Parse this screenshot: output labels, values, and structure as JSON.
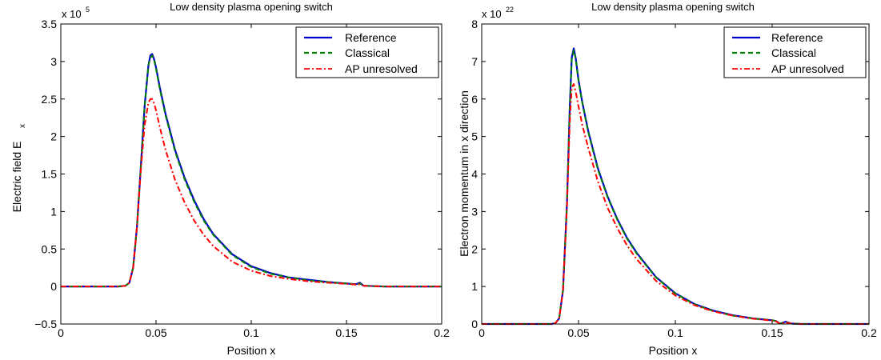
{
  "chart_data": [
    {
      "type": "line",
      "title": "Low density plasma opening switch",
      "xlabel": "Position x",
      "ylabel_main": "Electric field E",
      "ylabel_sub": "x",
      "y_multiplier_base": "x 10",
      "y_multiplier_exp": "5",
      "xlim": [
        0,
        0.2
      ],
      "ylim": [
        -0.5,
        3.5
      ],
      "xticks": [
        0,
        0.05,
        0.1,
        0.15,
        0.2
      ],
      "xtick_labels": [
        "0",
        "0.05",
        "0.1",
        "0.15",
        "0.2"
      ],
      "yticks": [
        -0.5,
        0,
        0.5,
        1,
        1.5,
        2,
        2.5,
        3,
        3.5
      ],
      "ytick_labels": [
        "−0.5",
        "0",
        "0.5",
        "1",
        "1.5",
        "2",
        "2.5",
        "3",
        "3.5"
      ],
      "grid": false,
      "legend_position": "top-right",
      "series": [
        {
          "name": "Reference",
          "color": "#0000cc",
          "dash": "solid",
          "x": [
            0,
            0.03,
            0.034,
            0.036,
            0.038,
            0.04,
            0.042,
            0.044,
            0.046,
            0.047,
            0.048,
            0.049,
            0.05,
            0.052,
            0.055,
            0.06,
            0.065,
            0.07,
            0.075,
            0.08,
            0.09,
            0.1,
            0.11,
            0.12,
            0.13,
            0.14,
            0.15,
            0.155,
            0.157,
            0.159,
            0.165,
            0.17,
            0.2
          ],
          "y": [
            0,
            0,
            0.01,
            0.05,
            0.25,
            0.8,
            1.6,
            2.4,
            2.95,
            3.08,
            3.1,
            3.03,
            2.92,
            2.65,
            2.3,
            1.82,
            1.45,
            1.15,
            0.9,
            0.7,
            0.43,
            0.27,
            0.18,
            0.12,
            0.09,
            0.06,
            0.04,
            0.03,
            0.05,
            0.01,
            0.005,
            0,
            0
          ]
        },
        {
          "name": "Classical",
          "color": "#008000",
          "dash": "6,4",
          "x": [
            0,
            0.03,
            0.034,
            0.036,
            0.038,
            0.04,
            0.042,
            0.044,
            0.046,
            0.047,
            0.048,
            0.049,
            0.05,
            0.052,
            0.055,
            0.06,
            0.065,
            0.07,
            0.075,
            0.08,
            0.09,
            0.1,
            0.11,
            0.12,
            0.13,
            0.14,
            0.15,
            0.155,
            0.157,
            0.159,
            0.165,
            0.17,
            0.2
          ],
          "y": [
            0,
            0,
            0.01,
            0.05,
            0.25,
            0.8,
            1.6,
            2.4,
            2.95,
            3.05,
            3.08,
            3.02,
            2.9,
            2.63,
            2.28,
            1.8,
            1.43,
            1.13,
            0.88,
            0.69,
            0.42,
            0.26,
            0.17,
            0.12,
            0.08,
            0.06,
            0.04,
            0.03,
            0.04,
            0.01,
            0.005,
            0,
            0
          ]
        },
        {
          "name": "AP unresolved",
          "color": "#ff0000",
          "dash": "7,3,2,3",
          "x": [
            0,
            0.03,
            0.034,
            0.036,
            0.038,
            0.04,
            0.042,
            0.044,
            0.046,
            0.047,
            0.048,
            0.049,
            0.05,
            0.052,
            0.055,
            0.06,
            0.065,
            0.07,
            0.075,
            0.08,
            0.09,
            0.1,
            0.11,
            0.12,
            0.13,
            0.14,
            0.15,
            0.155,
            0.157,
            0.159,
            0.165,
            0.17,
            0.2
          ],
          "y": [
            0,
            0,
            0.01,
            0.05,
            0.25,
            0.8,
            1.55,
            2.15,
            2.45,
            2.5,
            2.5,
            2.44,
            2.35,
            2.12,
            1.82,
            1.42,
            1.12,
            0.88,
            0.69,
            0.54,
            0.33,
            0.21,
            0.14,
            0.1,
            0.07,
            0.05,
            0.035,
            0.025,
            0.03,
            0.01,
            0.005,
            0,
            0
          ]
        }
      ]
    },
    {
      "type": "line",
      "title": "Low density plasma opening switch",
      "xlabel": "Position x",
      "ylabel_main": "Electron momentum in x direction",
      "ylabel_sub": "",
      "y_multiplier_base": "x 10",
      "y_multiplier_exp": "22",
      "xlim": [
        0,
        0.2
      ],
      "ylim": [
        0,
        8
      ],
      "xticks": [
        0,
        0.05,
        0.1,
        0.15,
        0.2
      ],
      "xtick_labels": [
        "0",
        "0.05",
        "0.1",
        "0.15",
        "0.2"
      ],
      "yticks": [
        0,
        1,
        2,
        3,
        4,
        5,
        6,
        7,
        8
      ],
      "ytick_labels": [
        "0",
        "1",
        "2",
        "3",
        "4",
        "5",
        "6",
        "7",
        "8"
      ],
      "grid": false,
      "legend_position": "top-right",
      "series": [
        {
          "name": "Reference",
          "color": "#0000cc",
          "dash": "solid",
          "x": [
            0,
            0.036,
            0.038,
            0.04,
            0.042,
            0.044,
            0.0455,
            0.0465,
            0.0475,
            0.0485,
            0.05,
            0.052,
            0.055,
            0.06,
            0.065,
            0.07,
            0.075,
            0.08,
            0.09,
            0.1,
            0.11,
            0.12,
            0.13,
            0.14,
            0.15,
            0.152,
            0.154,
            0.157,
            0.16,
            0.165,
            0.2
          ],
          "y": [
            0,
            0,
            0.02,
            0.15,
            0.9,
            3.2,
            5.8,
            7.1,
            7.35,
            7.1,
            6.5,
            5.9,
            5.15,
            4.15,
            3.4,
            2.8,
            2.3,
            1.9,
            1.25,
            0.82,
            0.53,
            0.35,
            0.23,
            0.15,
            0.1,
            0.08,
            0.01,
            0.06,
            0.01,
            0,
            0
          ]
        },
        {
          "name": "Classical",
          "color": "#008000",
          "dash": "6,4",
          "x": [
            0,
            0.036,
            0.038,
            0.04,
            0.042,
            0.044,
            0.0455,
            0.0465,
            0.0475,
            0.0485,
            0.05,
            0.052,
            0.055,
            0.06,
            0.065,
            0.07,
            0.075,
            0.08,
            0.09,
            0.1,
            0.11,
            0.12,
            0.13,
            0.14,
            0.15,
            0.152,
            0.154,
            0.157,
            0.16,
            0.165,
            0.2
          ],
          "y": [
            0,
            0,
            0.02,
            0.15,
            0.9,
            3.2,
            5.8,
            7.05,
            7.3,
            7.08,
            6.48,
            5.88,
            5.12,
            4.12,
            3.38,
            2.78,
            2.28,
            1.88,
            1.24,
            0.81,
            0.52,
            0.34,
            0.22,
            0.15,
            0.1,
            0.08,
            0.01,
            0.05,
            0.01,
            0,
            0
          ]
        },
        {
          "name": "AP unresolved",
          "color": "#ff0000",
          "dash": "7,3,2,3",
          "x": [
            0,
            0.036,
            0.038,
            0.04,
            0.042,
            0.044,
            0.0455,
            0.0465,
            0.0475,
            0.0485,
            0.05,
            0.052,
            0.055,
            0.06,
            0.065,
            0.07,
            0.075,
            0.08,
            0.09,
            0.1,
            0.11,
            0.12,
            0.13,
            0.14,
            0.15,
            0.152,
            0.154,
            0.157,
            0.16,
            0.165,
            0.2
          ],
          "y": [
            0,
            0,
            0.02,
            0.15,
            0.9,
            3.1,
            5.4,
            6.3,
            6.4,
            6.2,
            5.8,
            5.3,
            4.7,
            3.8,
            3.1,
            2.56,
            2.1,
            1.73,
            1.15,
            0.76,
            0.5,
            0.33,
            0.22,
            0.14,
            0.09,
            0.07,
            0.01,
            0.04,
            0.01,
            0,
            0
          ]
        }
      ]
    }
  ]
}
